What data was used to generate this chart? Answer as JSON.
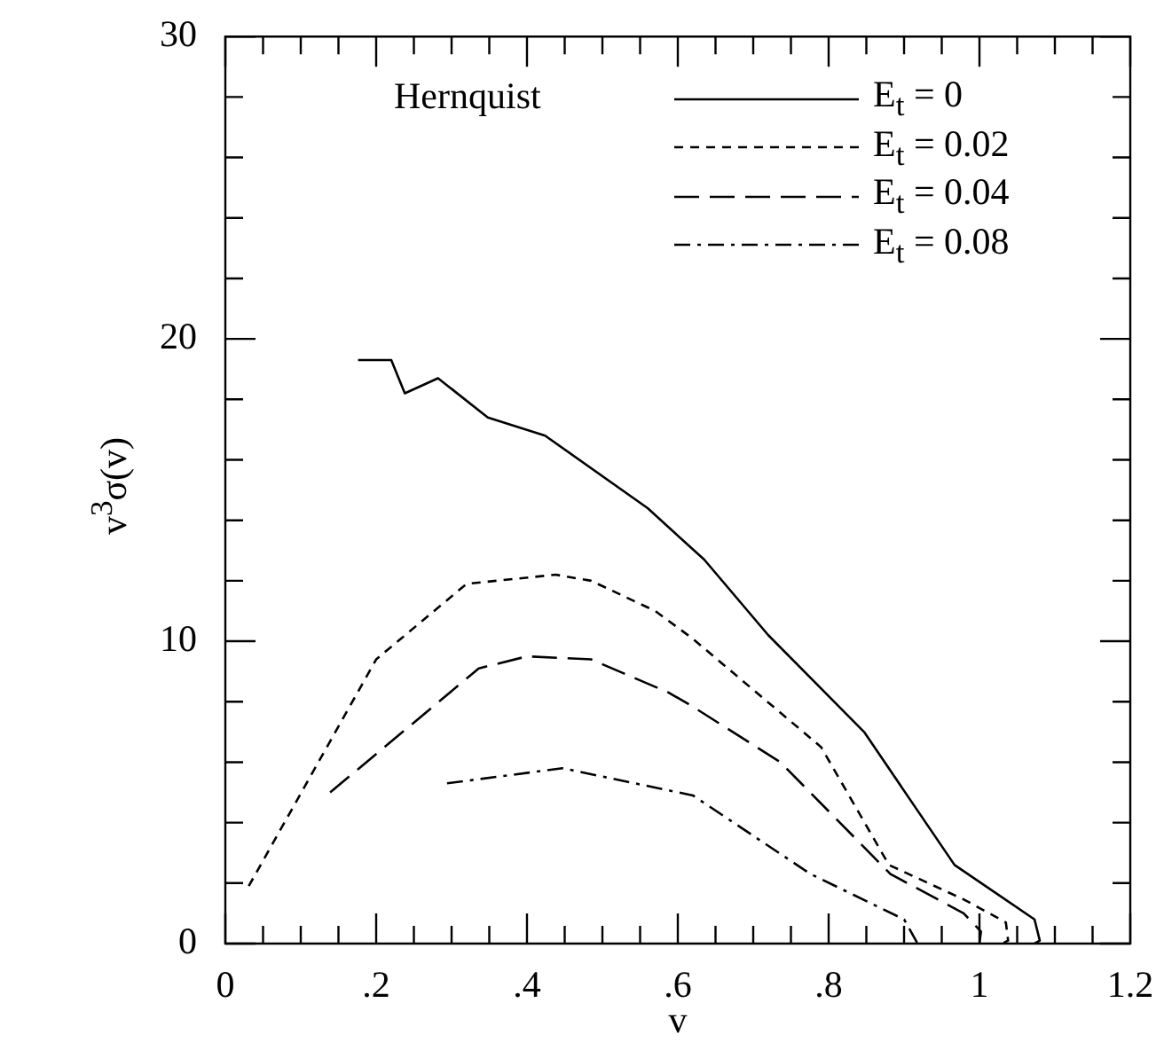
{
  "chart_data": {
    "type": "line",
    "xlabel": "v",
    "ylabel": "v$^{3}$σ(v)",
    "annotations": [
      "Hernquist"
    ],
    "xlim": [
      0,
      1.2
    ],
    "ylim": [
      0,
      30
    ],
    "xticks": [
      0,
      {
        "value": 0.05,
        "label": null
      },
      {
        "value": 0.1,
        "label": null
      },
      {
        "value": 0.15,
        "label": null
      },
      {
        "value": 0.2,
        "label": ".2"
      },
      {
        "value": 0.25,
        "label": null
      },
      {
        "value": 0.3,
        "label": null
      },
      {
        "value": 0.35,
        "label": null
      },
      {
        "value": 0.4,
        "label": ".4"
      },
      {
        "value": 0.45,
        "label": null
      },
      {
        "value": 0.5,
        "label": null
      },
      {
        "value": 0.55,
        "label": null
      },
      {
        "value": 0.6,
        "label": ".6"
      },
      {
        "value": 0.65,
        "label": null
      },
      {
        "value": 0.7,
        "label": null
      },
      {
        "value": 0.75,
        "label": null
      },
      {
        "value": 0.8,
        "label": ".8"
      },
      {
        "value": 0.85,
        "label": null
      },
      {
        "value": 0.9,
        "label": null
      },
      {
        "value": 0.95,
        "label": null
      },
      1,
      {
        "value": 1.05,
        "label": null
      },
      {
        "value": 1.1,
        "label": null
      },
      {
        "value": 1.15,
        "label": null
      },
      1.2
    ],
    "yticks": [
      0,
      {
        "value": 2,
        "label": null
      },
      {
        "value": 4,
        "label": null
      },
      {
        "value": 6,
        "label": null
      },
      {
        "value": 8,
        "label": null
      },
      10,
      {
        "value": 12,
        "label": null
      },
      {
        "value": 14,
        "label": null
      },
      {
        "value": 16,
        "label": null
      },
      {
        "value": 18,
        "label": null
      },
      20,
      {
        "value": 22,
        "label": null
      },
      {
        "value": 24,
        "label": null
      },
      {
        "value": 26,
        "label": null
      },
      {
        "value": 28,
        "label": null
      },
      30
    ],
    "grid": false,
    "legend": "top right",
    "marker": "none",
    "series": [
      {
        "name": "E$_{t}$ = 0",
        "color": "#000000",
        "line_style": "solid",
        "x": [
          0.176,
          0.22,
          0.238,
          0.282,
          0.348,
          0.424,
          0.56,
          0.635,
          0.72,
          0.847,
          0.967,
          1.073,
          1.08,
          1.073
        ],
        "values": [
          19.3,
          19.3,
          18.2,
          18.7,
          17.4,
          16.8,
          14.4,
          12.7,
          10.2,
          7.0,
          2.6,
          0.8,
          0.1,
          0
        ]
      },
      {
        "name": "E$_{t}$ = 0.02",
        "color": "#000000",
        "line_style": "dotted",
        "x": [
          0.031,
          0.2,
          0.32,
          0.438,
          0.485,
          0.57,
          0.619,
          0.79,
          0.88,
          0.98,
          1.035,
          1.038,
          1.03
        ],
        "values": [
          1.9,
          9.4,
          11.9,
          12.2,
          12.0,
          11.0,
          10.1,
          6.5,
          2.6,
          1.45,
          0.7,
          0.1,
          0
        ]
      },
      {
        "name": "E$_{t}$ = 0.04",
        "color": "#000000",
        "line_style": "dashed",
        "x": [
          0.139,
          0.336,
          0.4,
          0.485,
          0.588,
          0.619,
          0.736,
          0.882,
          0.979,
          1.002,
          1.0
        ],
        "values": [
          5.0,
          9.1,
          9.5,
          9.4,
          8.3,
          7.85,
          6.0,
          2.3,
          1.0,
          0.4,
          0
        ]
      },
      {
        "name": "E$_{t}$ = 0.08",
        "color": "#000000",
        "line_style": "dashdot",
        "x": [
          0.294,
          0.447,
          0.62,
          0.776,
          0.9,
          0.918
        ],
        "values": [
          5.3,
          5.8,
          4.9,
          2.3,
          0.8,
          0
        ]
      }
    ]
  }
}
